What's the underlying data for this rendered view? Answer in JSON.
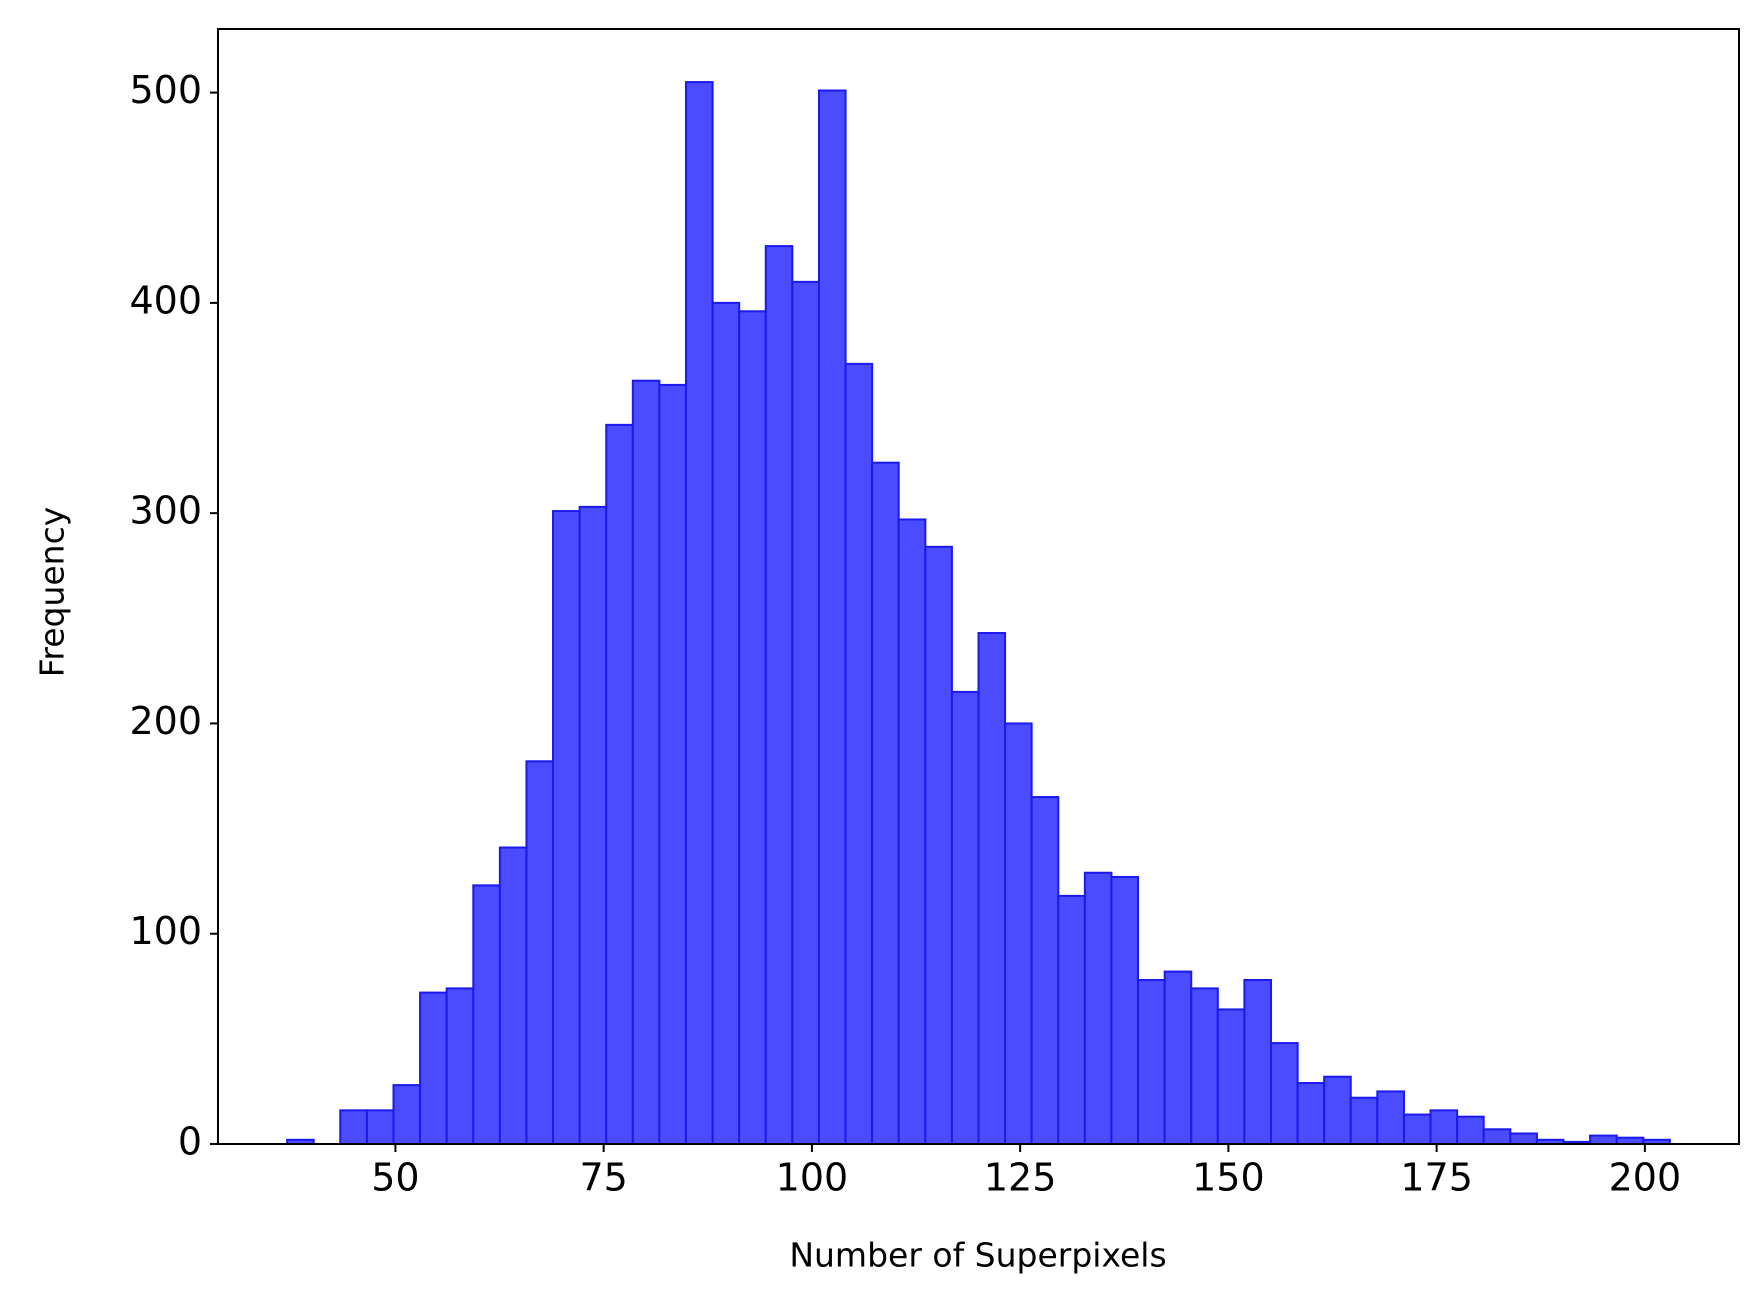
{
  "chart_data": {
    "type": "histogram",
    "xlabel": "Number of Superpixels",
    "ylabel": "Frequency",
    "bins": [
      37.0,
      40.19,
      43.38,
      46.58,
      49.77,
      52.96,
      56.15,
      59.35,
      62.54,
      65.73,
      68.92,
      72.12,
      75.31,
      78.5,
      81.69,
      84.88,
      88.08,
      91.27,
      94.46,
      97.65,
      100.85,
      104.04,
      107.23,
      110.42,
      113.62,
      116.81,
      120.0,
      123.19,
      126.38,
      129.58,
      132.77,
      135.96,
      139.15,
      142.35,
      145.54,
      148.73,
      151.92,
      155.12,
      158.31,
      161.5,
      164.69,
      167.88,
      171.08,
      174.27,
      177.46,
      180.65,
      183.85,
      187.04,
      190.23,
      193.42,
      196.62,
      199.81,
      203.0
    ],
    "values": [
      2,
      0,
      16,
      16,
      28,
      72,
      74,
      123,
      141,
      182,
      301,
      303,
      342,
      363,
      361,
      505,
      400,
      396,
      427,
      410,
      501,
      371,
      324,
      297,
      284,
      215,
      243,
      200,
      165,
      118,
      129,
      127,
      78,
      82,
      74,
      64,
      78,
      48,
      29,
      32,
      22,
      25,
      14,
      16,
      13,
      7,
      5,
      2,
      1,
      4,
      3,
      2
    ],
    "color": "#4b4bff",
    "edgecolor": "#1a1aee",
    "xlim": [
      28.7,
      211.3
    ],
    "ylim": [
      0,
      530.25
    ],
    "xticks": [
      50,
      75,
      100,
      125,
      150,
      175,
      200
    ],
    "yticks": [
      0,
      100,
      200,
      300,
      400,
      500
    ],
    "grid": false
  }
}
